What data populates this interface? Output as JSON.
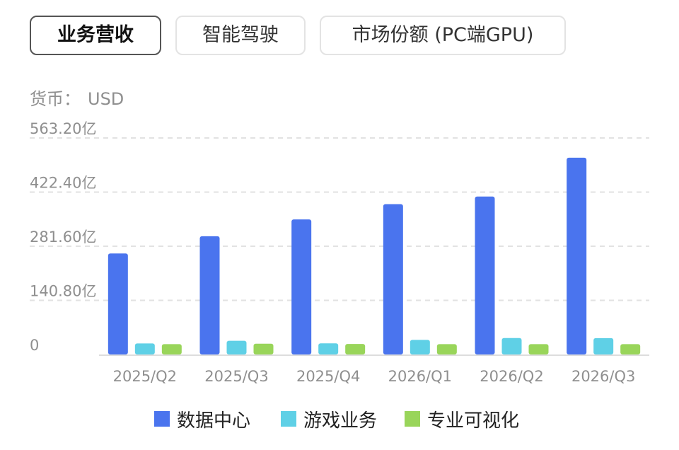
{
  "tabs": [
    {
      "label": "业务营收",
      "active": true
    },
    {
      "label": "智能驾驶",
      "active": false
    },
    {
      "label": "市场份额 (PC端GPU)",
      "active": false
    }
  ],
  "currency": {
    "label": "货币：",
    "value": "USD"
  },
  "colors": {
    "data_center": "#4a74ee",
    "gaming": "#5fd0e6",
    "pro_viz": "#99d55a",
    "grid": "#e2e2e2",
    "tick_text": "#8f8f8f"
  },
  "chart_data": {
    "type": "bar",
    "categories": [
      "2025/Q2",
      "2025/Q3",
      "2025/Q4",
      "2026/Q1",
      "2026/Q2",
      "2026/Q3"
    ],
    "series": [
      {
        "name": "数据中心",
        "values": [
          262.7,
          307.7,
          351.3,
          391.1,
          411.0,
          512.0
        ]
      },
      {
        "name": "游戏业务",
        "values": [
          28.7,
          35.7,
          29.1,
          38.0,
          42.9,
          42.5
        ]
      },
      {
        "name": "专业可视化",
        "values": [
          27.0,
          28.0,
          27.3,
          27.0,
          27.0,
          27.0
        ]
      }
    ],
    "y_ticks": [
      "0",
      "140.80亿",
      "281.60亿",
      "422.40亿",
      "563.20亿"
    ],
    "ylim": [
      0,
      563.2
    ],
    "grid": true,
    "legend_position": "bottom"
  }
}
